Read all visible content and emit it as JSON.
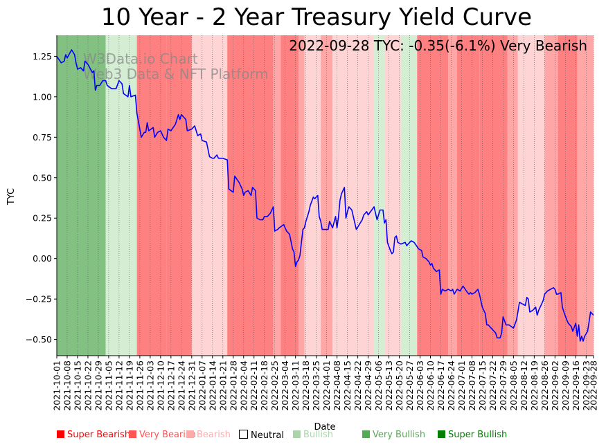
{
  "chart_data": {
    "type": "line",
    "title": "10 Year - 2 Year Treasury Yield Curve",
    "xlabel": "Date",
    "ylabel": "TYC",
    "ylim": [
      -0.6,
      1.38
    ],
    "yticks": [
      -0.5,
      -0.25,
      0.0,
      0.25,
      0.5,
      0.75,
      1.0,
      1.25
    ],
    "ytick_labels": [
      "−0.50",
      "−0.25",
      "0.00",
      "0.25",
      "0.50",
      "0.75",
      "1.00",
      "1.25"
    ],
    "x_start": "2021-10-01",
    "x_end": "2022-09-28",
    "xtick_labels": [
      "2021-10-01",
      "2021-10-08",
      "2021-10-15",
      "2021-10-22",
      "2021-10-29",
      "2021-11-05",
      "2021-11-12",
      "2021-11-19",
      "2021-11-26",
      "2021-12-03",
      "2021-12-10",
      "2021-12-17",
      "2021-12-24",
      "2021-12-31",
      "2022-01-07",
      "2022-01-14",
      "2022-01-21",
      "2022-01-28",
      "2022-02-04",
      "2022-02-11",
      "2022-02-18",
      "2022-02-25",
      "2022-03-04",
      "2022-03-11",
      "2022-03-18",
      "2022-03-25",
      "2022-04-01",
      "2022-04-08",
      "2022-04-15",
      "2022-04-22",
      "2022-04-29",
      "2022-05-06",
      "2022-05-13",
      "2022-05-20",
      "2022-05-27",
      "2022-06-03",
      "2022-06-10",
      "2022-06-17",
      "2022-06-24",
      "2022-07-01",
      "2022-07-08",
      "2022-07-15",
      "2022-07-22",
      "2022-07-29",
      "2022-08-05",
      "2022-08-12",
      "2022-08-19",
      "2022-08-26",
      "2022-09-02",
      "2022-09-09",
      "2022-09-16",
      "2022-09-23",
      "2022-09-28"
    ],
    "series": [
      {
        "name": "TYC",
        "color": "#0000ff",
        "points": [
          [
            "2021-10-01",
            1.25
          ],
          [
            "2021-10-04",
            1.21
          ],
          [
            "2021-10-06",
            1.22
          ],
          [
            "2021-10-07",
            1.26
          ],
          [
            "2021-10-08",
            1.24
          ],
          [
            "2021-10-11",
            1.29
          ],
          [
            "2021-10-13",
            1.26
          ],
          [
            "2021-10-14",
            1.21
          ],
          [
            "2021-10-15",
            1.17
          ],
          [
            "2021-10-17",
            1.18
          ],
          [
            "2021-10-19",
            1.16
          ],
          [
            "2021-10-20",
            1.22
          ],
          [
            "2021-10-22",
            1.2
          ],
          [
            "2021-10-25",
            1.15
          ],
          [
            "2021-10-26",
            1.16
          ],
          [
            "2021-10-27",
            1.04
          ],
          [
            "2021-10-28",
            1.07
          ],
          [
            "2021-10-30",
            1.07
          ],
          [
            "2021-11-01",
            1.1
          ],
          [
            "2021-11-03",
            1.1
          ],
          [
            "2021-11-04",
            1.07
          ],
          [
            "2021-11-07",
            1.05
          ],
          [
            "2021-11-10",
            1.05
          ],
          [
            "2021-11-12",
            1.1
          ],
          [
            "2021-11-14",
            1.08
          ],
          [
            "2021-11-15",
            1.02
          ],
          [
            "2021-11-18",
            1.0
          ],
          [
            "2021-11-19",
            1.07
          ],
          [
            "2021-11-20",
            1.0
          ],
          [
            "2021-11-23",
            1.01
          ],
          [
            "2021-11-24",
            0.9
          ],
          [
            "2021-11-27",
            0.75
          ],
          [
            "2021-11-29",
            0.78
          ],
          [
            "2021-11-30",
            0.78
          ],
          [
            "2021-12-01",
            0.84
          ],
          [
            "2021-12-02",
            0.79
          ],
          [
            "2021-12-05",
            0.81
          ],
          [
            "2021-12-06",
            0.75
          ],
          [
            "2021-12-08",
            0.78
          ],
          [
            "2021-12-10",
            0.79
          ],
          [
            "2021-12-12",
            0.75
          ],
          [
            "2021-12-14",
            0.73
          ],
          [
            "2021-12-15",
            0.8
          ],
          [
            "2021-12-17",
            0.79
          ],
          [
            "2021-12-20",
            0.83
          ],
          [
            "2021-12-22",
            0.89
          ],
          [
            "2021-12-23",
            0.86
          ],
          [
            "2021-12-24",
            0.89
          ],
          [
            "2021-12-27",
            0.86
          ],
          [
            "2021-12-28",
            0.79
          ],
          [
            "2021-12-31",
            0.8
          ],
          [
            "2022-01-02",
            0.82
          ],
          [
            "2022-01-04",
            0.76
          ],
          [
            "2022-01-06",
            0.77
          ],
          [
            "2022-01-07",
            0.73
          ],
          [
            "2022-01-10",
            0.72
          ],
          [
            "2022-01-12",
            0.63
          ],
          [
            "2022-01-14",
            0.62
          ],
          [
            "2022-01-15",
            0.62
          ],
          [
            "2022-01-17",
            0.64
          ],
          [
            "2022-01-18",
            0.62
          ],
          [
            "2022-01-21",
            0.62
          ],
          [
            "2022-01-24",
            0.61
          ],
          [
            "2022-01-25",
            0.43
          ],
          [
            "2022-01-28",
            0.41
          ],
          [
            "2022-01-29",
            0.51
          ],
          [
            "2022-02-01",
            0.47
          ],
          [
            "2022-02-03",
            0.43
          ],
          [
            "2022-02-04",
            0.39
          ],
          [
            "2022-02-05",
            0.41
          ],
          [
            "2022-02-07",
            0.42
          ],
          [
            "2022-02-09",
            0.39
          ],
          [
            "2022-02-10",
            0.44
          ],
          [
            "2022-02-12",
            0.42
          ],
          [
            "2022-02-13",
            0.25
          ],
          [
            "2022-02-15",
            0.24
          ],
          [
            "2022-02-17",
            0.24
          ],
          [
            "2022-02-18",
            0.26
          ],
          [
            "2022-02-20",
            0.26
          ],
          [
            "2022-02-22",
            0.28
          ],
          [
            "2022-02-24",
            0.32
          ],
          [
            "2022-02-25",
            0.17
          ],
          [
            "2022-02-27",
            0.18
          ],
          [
            "2022-02-28",
            0.19
          ],
          [
            "2022-03-03",
            0.21
          ],
          [
            "2022-03-05",
            0.17
          ],
          [
            "2022-03-07",
            0.15
          ],
          [
            "2022-03-09",
            0.06
          ],
          [
            "2022-03-10",
            0.04
          ],
          [
            "2022-03-11",
            -0.05
          ],
          [
            "2022-03-12",
            -0.02
          ],
          [
            "2022-03-13",
            -0.01
          ],
          [
            "2022-03-14",
            0.02
          ],
          [
            "2022-03-15",
            0.1
          ],
          [
            "2022-03-16",
            0.18
          ],
          [
            "2022-03-17",
            0.19
          ],
          [
            "2022-03-18",
            0.23
          ],
          [
            "2022-03-20",
            0.29
          ],
          [
            "2022-03-21",
            0.33
          ],
          [
            "2022-03-23",
            0.38
          ],
          [
            "2022-03-24",
            0.37
          ],
          [
            "2022-03-26",
            0.39
          ],
          [
            "2022-03-27",
            0.26
          ],
          [
            "2022-03-28",
            0.23
          ],
          [
            "2022-03-29",
            0.18
          ],
          [
            "2022-03-31",
            0.18
          ],
          [
            "2022-04-02",
            0.18
          ],
          [
            "2022-04-03",
            0.23
          ],
          [
            "2022-04-05",
            0.19
          ],
          [
            "2022-04-07",
            0.26
          ],
          [
            "2022-04-08",
            0.19
          ],
          [
            "2022-04-09",
            0.26
          ],
          [
            "2022-04-10",
            0.36
          ],
          [
            "2022-04-11",
            0.4
          ],
          [
            "2022-04-13",
            0.44
          ],
          [
            "2022-04-14",
            0.25
          ],
          [
            "2022-04-15",
            0.29
          ],
          [
            "2022-04-16",
            0.32
          ],
          [
            "2022-04-18",
            0.3
          ],
          [
            "2022-04-20",
            0.22
          ],
          [
            "2022-04-21",
            0.18
          ],
          [
            "2022-04-23",
            0.21
          ],
          [
            "2022-04-25",
            0.24
          ],
          [
            "2022-04-26",
            0.27
          ],
          [
            "2022-04-28",
            0.29
          ],
          [
            "2022-04-29",
            0.27
          ],
          [
            "2022-05-03",
            0.32
          ],
          [
            "2022-05-05",
            0.24
          ],
          [
            "2022-05-07",
            0.3
          ],
          [
            "2022-05-09",
            0.3
          ],
          [
            "2022-05-10",
            0.22
          ],
          [
            "2022-05-11",
            0.24
          ],
          [
            "2022-05-12",
            0.1
          ],
          [
            "2022-05-14",
            0.05
          ],
          [
            "2022-05-15",
            0.03
          ],
          [
            "2022-05-16",
            0.04
          ],
          [
            "2022-05-17",
            0.13
          ],
          [
            "2022-05-18",
            0.14
          ],
          [
            "2022-05-19",
            0.1
          ],
          [
            "2022-05-21",
            0.09
          ],
          [
            "2022-05-24",
            0.1
          ],
          [
            "2022-05-25",
            0.08
          ],
          [
            "2022-05-28",
            0.11
          ],
          [
            "2022-05-30",
            0.1
          ],
          [
            "2022-06-02",
            0.06
          ],
          [
            "2022-06-04",
            0.05
          ],
          [
            "2022-06-05",
            0.01
          ],
          [
            "2022-06-07",
            0.0
          ],
          [
            "2022-06-09",
            -0.02
          ],
          [
            "2022-06-10",
            -0.04
          ],
          [
            "2022-06-11",
            -0.03
          ],
          [
            "2022-06-12",
            -0.06
          ],
          [
            "2022-06-14",
            -0.08
          ],
          [
            "2022-06-16",
            -0.07
          ],
          [
            "2022-06-17",
            -0.22
          ],
          [
            "2022-06-18",
            -0.19
          ],
          [
            "2022-06-20",
            -0.2
          ],
          [
            "2022-06-22",
            -0.19
          ],
          [
            "2022-06-24",
            -0.2
          ],
          [
            "2022-06-25",
            -0.19
          ],
          [
            "2022-06-26",
            -0.22
          ],
          [
            "2022-06-28",
            -0.19
          ],
          [
            "2022-06-30",
            -0.2
          ],
          [
            "2022-07-02",
            -0.17
          ],
          [
            "2022-07-05",
            -0.21
          ],
          [
            "2022-07-06",
            -0.22
          ],
          [
            "2022-07-07",
            -0.21
          ],
          [
            "2022-07-08",
            -0.22
          ],
          [
            "2022-07-10",
            -0.21
          ],
          [
            "2022-07-12",
            -0.19
          ],
          [
            "2022-07-13",
            -0.22
          ],
          [
            "2022-07-15",
            -0.3
          ],
          [
            "2022-07-17",
            -0.34
          ],
          [
            "2022-07-18",
            -0.41
          ],
          [
            "2022-07-19",
            -0.41
          ],
          [
            "2022-07-20",
            -0.42
          ],
          [
            "2022-07-22",
            -0.44
          ],
          [
            "2022-07-24",
            -0.46
          ],
          [
            "2022-07-25",
            -0.49
          ],
          [
            "2022-07-27",
            -0.49
          ],
          [
            "2022-07-28",
            -0.46
          ],
          [
            "2022-07-29",
            -0.36
          ],
          [
            "2022-07-31",
            -0.41
          ],
          [
            "2022-08-02",
            -0.41
          ],
          [
            "2022-08-05",
            -0.43
          ],
          [
            "2022-08-07",
            -0.38
          ],
          [
            "2022-08-08",
            -0.33
          ],
          [
            "2022-08-09",
            -0.27
          ],
          [
            "2022-08-11",
            -0.28
          ],
          [
            "2022-08-13",
            -0.29
          ],
          [
            "2022-08-14",
            -0.24
          ],
          [
            "2022-08-15",
            -0.25
          ],
          [
            "2022-08-16",
            -0.33
          ],
          [
            "2022-08-18",
            -0.32
          ],
          [
            "2022-08-20",
            -0.3
          ],
          [
            "2022-08-21",
            -0.35
          ],
          [
            "2022-08-22",
            -0.32
          ],
          [
            "2022-08-24",
            -0.28
          ],
          [
            "2022-08-25",
            -0.26
          ],
          [
            "2022-08-26",
            -0.22
          ],
          [
            "2022-08-28",
            -0.2
          ],
          [
            "2022-08-30",
            -0.19
          ],
          [
            "2022-09-01",
            -0.18
          ],
          [
            "2022-09-02",
            -0.19
          ],
          [
            "2022-09-03",
            -0.22
          ],
          [
            "2022-09-04",
            -0.22
          ],
          [
            "2022-09-06",
            -0.21
          ],
          [
            "2022-09-07",
            -0.3
          ],
          [
            "2022-09-08",
            -0.33
          ],
          [
            "2022-09-10",
            -0.38
          ],
          [
            "2022-09-11",
            -0.4
          ],
          [
            "2022-09-13",
            -0.42
          ],
          [
            "2022-09-14",
            -0.45
          ],
          [
            "2022-09-16",
            -0.4
          ],
          [
            "2022-09-17",
            -0.48
          ],
          [
            "2022-09-18",
            -0.41
          ],
          [
            "2022-09-19",
            -0.51
          ],
          [
            "2022-09-20",
            -0.48
          ],
          [
            "2022-09-21",
            -0.51
          ],
          [
            "2022-09-22",
            -0.48
          ],
          [
            "2022-09-24",
            -0.45
          ],
          [
            "2022-09-25",
            -0.39
          ],
          [
            "2022-09-26",
            -0.33
          ],
          [
            "2022-09-28",
            -0.35
          ]
        ]
      }
    ],
    "background_bands": [
      [
        "2021-10-01",
        "2021-11-03",
        "#82c182"
      ],
      [
        "2021-11-03",
        "2021-11-24",
        "#d4eed4"
      ],
      [
        "2021-11-24",
        "2021-12-14",
        "#ff8080"
      ],
      [
        "2021-12-14",
        "2021-12-31",
        "#ff8080"
      ],
      [
        "2021-12-31",
        "2022-01-07",
        "#ffd4d4"
      ],
      [
        "2022-01-07",
        "2022-01-24",
        "#ffd4d4"
      ],
      [
        "2022-01-24",
        "2022-02-24",
        "#ff8080"
      ],
      [
        "2022-02-24",
        "2022-03-01",
        "#ffa6a6"
      ],
      [
        "2022-03-01",
        "2022-03-13",
        "#ff8080"
      ],
      [
        "2022-03-13",
        "2022-03-17",
        "#ffa6a6"
      ],
      [
        "2022-03-17",
        "2022-03-28",
        "#ffd4d4"
      ],
      [
        "2022-03-28",
        "2022-04-05",
        "#ffa6a6"
      ],
      [
        "2022-04-05",
        "2022-05-03",
        "#ffd4d4"
      ],
      [
        "2022-05-03",
        "2022-05-10",
        "#d4eed4"
      ],
      [
        "2022-05-10",
        "2022-05-21",
        "#ffd4d4"
      ],
      [
        "2022-05-21",
        "2022-06-01",
        "#d4eed4"
      ],
      [
        "2022-06-01",
        "2022-06-22",
        "#ff8080"
      ],
      [
        "2022-06-22",
        "2022-06-28",
        "#ffa6a6"
      ],
      [
        "2022-06-28",
        "2022-07-13",
        "#ff8080"
      ],
      [
        "2022-07-13",
        "2022-08-01",
        "#ff8080"
      ],
      [
        "2022-08-01",
        "2022-08-08",
        "#ffa6a6"
      ],
      [
        "2022-08-08",
        "2022-08-26",
        "#ffd4d4"
      ],
      [
        "2022-08-26",
        "2022-09-04",
        "#ffa6a6"
      ],
      [
        "2022-09-04",
        "2022-09-17",
        "#ff8080"
      ],
      [
        "2022-09-17",
        "2022-09-28",
        "#ffa6a6"
      ]
    ],
    "annotation": "2022-09-28 TYC: -0.35(-6.1%) Very Bearish",
    "watermark": [
      "W3Data.io Chart",
      "Web3 Data & NFT Platform"
    ],
    "grid": "x-dotted",
    "legend": {
      "placement": "bottom",
      "items": [
        {
          "label": "Super Bearish",
          "color": "#ff0000"
        },
        {
          "label": "Very Bearish",
          "color": "#ff5555"
        },
        {
          "label": "Bearish",
          "color": "#ffaaaa"
        },
        {
          "label": "Neutral",
          "color": "#ffffff"
        },
        {
          "label": "Bullish",
          "color": "#aad4aa"
        },
        {
          "label": "Very Bullish",
          "color": "#55aa55"
        },
        {
          "label": "Super Bullish",
          "color": "#008000"
        }
      ]
    }
  }
}
